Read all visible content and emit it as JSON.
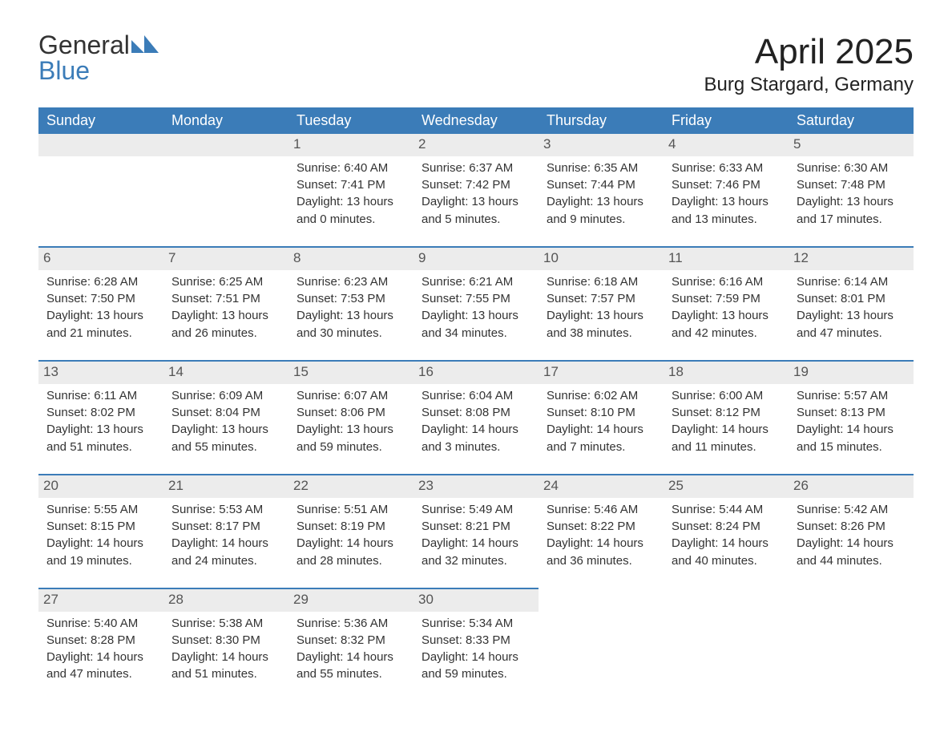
{
  "logo": {
    "text_general": "General",
    "text_blue": "Blue",
    "mark_fill": "#3b7cb8"
  },
  "header": {
    "month_title": "April 2025",
    "location": "Burg Stargard, Germany"
  },
  "colors": {
    "header_bg": "#3b7cb8",
    "header_text": "#ffffff",
    "daynum_bg": "#ececec",
    "body_text": "#333333",
    "row_separator": "#3b7cb8",
    "page_bg": "#ffffff"
  },
  "typography": {
    "month_title_fontsize": 44,
    "location_fontsize": 24,
    "weekday_header_fontsize": 18,
    "daynum_fontsize": 17,
    "cell_fontsize": 15,
    "logo_fontsize": 32,
    "font_family": "Arial"
  },
  "calendar": {
    "weekdays": [
      "Sunday",
      "Monday",
      "Tuesday",
      "Wednesday",
      "Thursday",
      "Friday",
      "Saturday"
    ],
    "weeks": [
      [
        null,
        null,
        {
          "n": "1",
          "sunrise": "Sunrise: 6:40 AM",
          "sunset": "Sunset: 7:41 PM",
          "dl1": "Daylight: 13 hours",
          "dl2": "and 0 minutes."
        },
        {
          "n": "2",
          "sunrise": "Sunrise: 6:37 AM",
          "sunset": "Sunset: 7:42 PM",
          "dl1": "Daylight: 13 hours",
          "dl2": "and 5 minutes."
        },
        {
          "n": "3",
          "sunrise": "Sunrise: 6:35 AM",
          "sunset": "Sunset: 7:44 PM",
          "dl1": "Daylight: 13 hours",
          "dl2": "and 9 minutes."
        },
        {
          "n": "4",
          "sunrise": "Sunrise: 6:33 AM",
          "sunset": "Sunset: 7:46 PM",
          "dl1": "Daylight: 13 hours",
          "dl2": "and 13 minutes."
        },
        {
          "n": "5",
          "sunrise": "Sunrise: 6:30 AM",
          "sunset": "Sunset: 7:48 PM",
          "dl1": "Daylight: 13 hours",
          "dl2": "and 17 minutes."
        }
      ],
      [
        {
          "n": "6",
          "sunrise": "Sunrise: 6:28 AM",
          "sunset": "Sunset: 7:50 PM",
          "dl1": "Daylight: 13 hours",
          "dl2": "and 21 minutes."
        },
        {
          "n": "7",
          "sunrise": "Sunrise: 6:25 AM",
          "sunset": "Sunset: 7:51 PM",
          "dl1": "Daylight: 13 hours",
          "dl2": "and 26 minutes."
        },
        {
          "n": "8",
          "sunrise": "Sunrise: 6:23 AM",
          "sunset": "Sunset: 7:53 PM",
          "dl1": "Daylight: 13 hours",
          "dl2": "and 30 minutes."
        },
        {
          "n": "9",
          "sunrise": "Sunrise: 6:21 AM",
          "sunset": "Sunset: 7:55 PM",
          "dl1": "Daylight: 13 hours",
          "dl2": "and 34 minutes."
        },
        {
          "n": "10",
          "sunrise": "Sunrise: 6:18 AM",
          "sunset": "Sunset: 7:57 PM",
          "dl1": "Daylight: 13 hours",
          "dl2": "and 38 minutes."
        },
        {
          "n": "11",
          "sunrise": "Sunrise: 6:16 AM",
          "sunset": "Sunset: 7:59 PM",
          "dl1": "Daylight: 13 hours",
          "dl2": "and 42 minutes."
        },
        {
          "n": "12",
          "sunrise": "Sunrise: 6:14 AM",
          "sunset": "Sunset: 8:01 PM",
          "dl1": "Daylight: 13 hours",
          "dl2": "and 47 minutes."
        }
      ],
      [
        {
          "n": "13",
          "sunrise": "Sunrise: 6:11 AM",
          "sunset": "Sunset: 8:02 PM",
          "dl1": "Daylight: 13 hours",
          "dl2": "and 51 minutes."
        },
        {
          "n": "14",
          "sunrise": "Sunrise: 6:09 AM",
          "sunset": "Sunset: 8:04 PM",
          "dl1": "Daylight: 13 hours",
          "dl2": "and 55 minutes."
        },
        {
          "n": "15",
          "sunrise": "Sunrise: 6:07 AM",
          "sunset": "Sunset: 8:06 PM",
          "dl1": "Daylight: 13 hours",
          "dl2": "and 59 minutes."
        },
        {
          "n": "16",
          "sunrise": "Sunrise: 6:04 AM",
          "sunset": "Sunset: 8:08 PM",
          "dl1": "Daylight: 14 hours",
          "dl2": "and 3 minutes."
        },
        {
          "n": "17",
          "sunrise": "Sunrise: 6:02 AM",
          "sunset": "Sunset: 8:10 PM",
          "dl1": "Daylight: 14 hours",
          "dl2": "and 7 minutes."
        },
        {
          "n": "18",
          "sunrise": "Sunrise: 6:00 AM",
          "sunset": "Sunset: 8:12 PM",
          "dl1": "Daylight: 14 hours",
          "dl2": "and 11 minutes."
        },
        {
          "n": "19",
          "sunrise": "Sunrise: 5:57 AM",
          "sunset": "Sunset: 8:13 PM",
          "dl1": "Daylight: 14 hours",
          "dl2": "and 15 minutes."
        }
      ],
      [
        {
          "n": "20",
          "sunrise": "Sunrise: 5:55 AM",
          "sunset": "Sunset: 8:15 PM",
          "dl1": "Daylight: 14 hours",
          "dl2": "and 19 minutes."
        },
        {
          "n": "21",
          "sunrise": "Sunrise: 5:53 AM",
          "sunset": "Sunset: 8:17 PM",
          "dl1": "Daylight: 14 hours",
          "dl2": "and 24 minutes."
        },
        {
          "n": "22",
          "sunrise": "Sunrise: 5:51 AM",
          "sunset": "Sunset: 8:19 PM",
          "dl1": "Daylight: 14 hours",
          "dl2": "and 28 minutes."
        },
        {
          "n": "23",
          "sunrise": "Sunrise: 5:49 AM",
          "sunset": "Sunset: 8:21 PM",
          "dl1": "Daylight: 14 hours",
          "dl2": "and 32 minutes."
        },
        {
          "n": "24",
          "sunrise": "Sunrise: 5:46 AM",
          "sunset": "Sunset: 8:22 PM",
          "dl1": "Daylight: 14 hours",
          "dl2": "and 36 minutes."
        },
        {
          "n": "25",
          "sunrise": "Sunrise: 5:44 AM",
          "sunset": "Sunset: 8:24 PM",
          "dl1": "Daylight: 14 hours",
          "dl2": "and 40 minutes."
        },
        {
          "n": "26",
          "sunrise": "Sunrise: 5:42 AM",
          "sunset": "Sunset: 8:26 PM",
          "dl1": "Daylight: 14 hours",
          "dl2": "and 44 minutes."
        }
      ],
      [
        {
          "n": "27",
          "sunrise": "Sunrise: 5:40 AM",
          "sunset": "Sunset: 8:28 PM",
          "dl1": "Daylight: 14 hours",
          "dl2": "and 47 minutes."
        },
        {
          "n": "28",
          "sunrise": "Sunrise: 5:38 AM",
          "sunset": "Sunset: 8:30 PM",
          "dl1": "Daylight: 14 hours",
          "dl2": "and 51 minutes."
        },
        {
          "n": "29",
          "sunrise": "Sunrise: 5:36 AM",
          "sunset": "Sunset: 8:32 PM",
          "dl1": "Daylight: 14 hours",
          "dl2": "and 55 minutes."
        },
        {
          "n": "30",
          "sunrise": "Sunrise: 5:34 AM",
          "sunset": "Sunset: 8:33 PM",
          "dl1": "Daylight: 14 hours",
          "dl2": "and 59 minutes."
        },
        null,
        null,
        null
      ]
    ]
  }
}
